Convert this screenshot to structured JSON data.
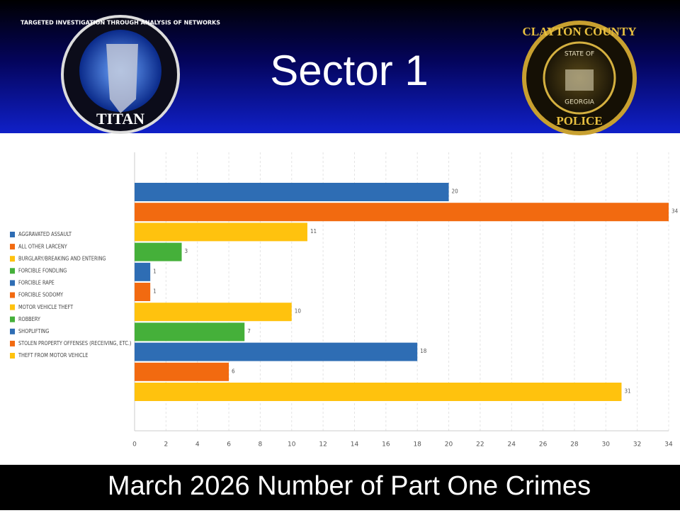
{
  "header": {
    "title": "Sector 1"
  },
  "logos": {
    "left_ring": "TARGETED INVESTIGATION THROUGH ANALYSIS OF NETWORKS",
    "left_name": "TITAN",
    "right_ring": "CLAYTON COUNTY",
    "right_state": "STATE OF",
    "right_georgia": "GEORGIA",
    "right_name": "POLICE"
  },
  "chart_data": {
    "type": "hbar",
    "categories": [
      "AGGRAVATED ASSAULT",
      "ALL OTHER LARCENY",
      "BURGLARY/BREAKING AND ENTERING",
      "FORCIBLE FONDLING",
      "FORCIBLE RAPE",
      "FORCIBLE SODOMY",
      "MOTOR VEHICLE THEFT",
      "ROBBERY",
      "SHOPLIFTING",
      "STOLEN PROPERTY OFFENSES (RECEIVING, ETC.)",
      "THEFT FROM MOTOR VEHICLE"
    ],
    "values": [
      20,
      34,
      11,
      3,
      1,
      1,
      10,
      7,
      18,
      6,
      31
    ],
    "colors": [
      "#2e6db4",
      "#f26a10",
      "#ffc20e",
      "#45b03a",
      "#2e6db4",
      "#f26a10",
      "#ffc20e",
      "#45b03a",
      "#2e6db4",
      "#f26a10",
      "#ffc20e"
    ],
    "xlim": [
      0,
      34
    ],
    "xticks": [
      0,
      2,
      4,
      6,
      8,
      10,
      12,
      14,
      16,
      18,
      20,
      22,
      24,
      26,
      28,
      30,
      32,
      34
    ],
    "grid": true,
    "legend": "left"
  },
  "footer": {
    "caption": "March 2026 Number of Part One Crimes"
  }
}
